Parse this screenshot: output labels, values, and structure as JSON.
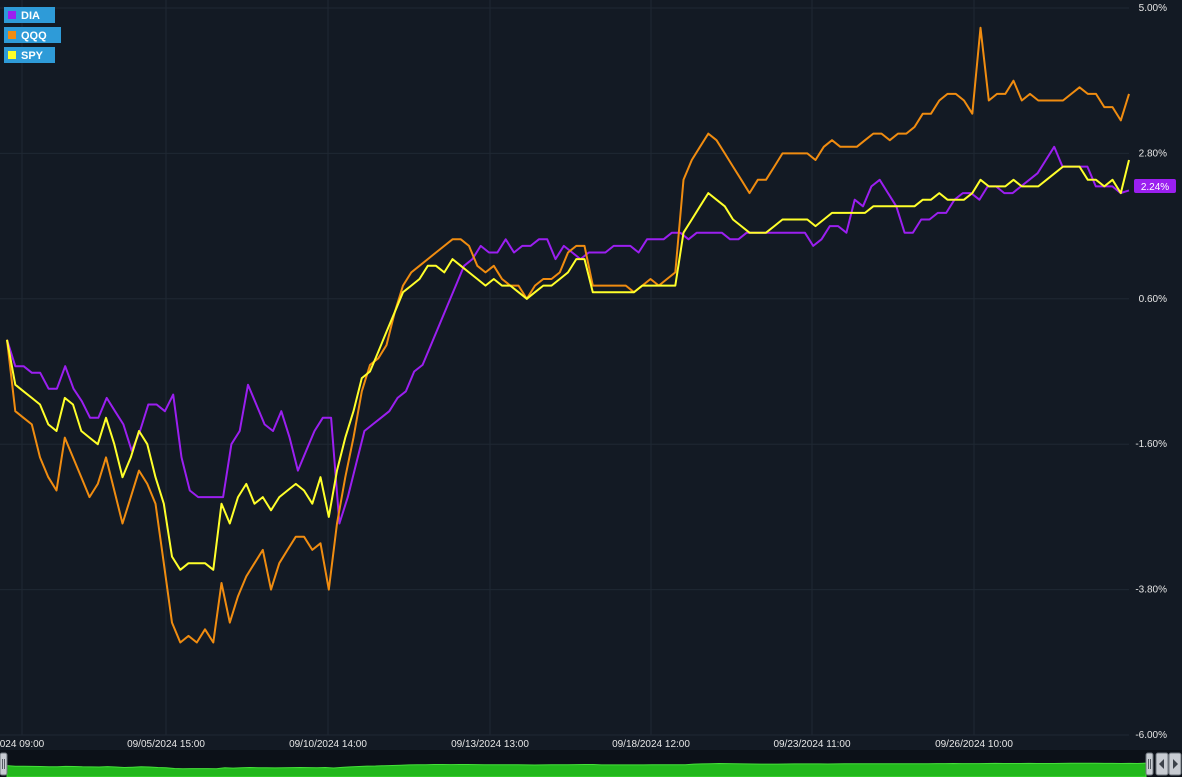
{
  "chart_data": {
    "type": "line",
    "title": "",
    "xlabel": "",
    "ylabel": "",
    "ylim": [
      -6.0,
      5.0
    ],
    "y_ticks": [
      "5.00%",
      "2.80%",
      "0.60%",
      "-1.60%",
      "-3.80%",
      "-6.00%"
    ],
    "x_ticks": [
      "024 09:00",
      "09/05/2024 15:00",
      "09/10/2024 14:00",
      "09/13/2024 13:00",
      "09/18/2024 12:00",
      "09/23/2024 11:00",
      "09/26/2024 10:00"
    ],
    "grid": true,
    "legend_position": "top-left",
    "last_value_label": "2.24%",
    "series": [
      {
        "name": "DIA",
        "color": "#9b1ff0",
        "values": [
          -0.02,
          -0.42,
          -0.42,
          -0.52,
          -0.52,
          -0.76,
          -0.76,
          -0.42,
          -0.76,
          -0.95,
          -1.2,
          -1.2,
          -0.9,
          -1.1,
          -1.3,
          -1.7,
          -1.4,
          -1.0,
          -1.0,
          -1.1,
          -0.85,
          -1.8,
          -2.3,
          -2.4,
          -2.4,
          -2.4,
          -2.4,
          -1.6,
          -1.4,
          -0.7,
          -1.0,
          -1.3,
          -1.4,
          -1.1,
          -1.5,
          -2.0,
          -1.7,
          -1.4,
          -1.2,
          -1.2,
          -2.8,
          -2.4,
          -1.9,
          -1.4,
          -1.3,
          -1.2,
          -1.1,
          -0.9,
          -0.8,
          -0.5,
          -0.4,
          -0.1,
          0.2,
          0.5,
          0.8,
          1.1,
          1.2,
          1.4,
          1.3,
          1.3,
          1.5,
          1.3,
          1.4,
          1.4,
          1.5,
          1.5,
          1.2,
          1.4,
          1.3,
          1.2,
          1.3,
          1.3,
          1.3,
          1.4,
          1.4,
          1.4,
          1.3,
          1.5,
          1.5,
          1.5,
          1.6,
          1.6,
          1.5,
          1.6,
          1.6,
          1.6,
          1.6,
          1.5,
          1.5,
          1.6,
          1.6,
          1.6,
          1.6,
          1.6,
          1.6,
          1.6,
          1.6,
          1.4,
          1.5,
          1.7,
          1.7,
          1.6,
          2.1,
          2.0,
          2.3,
          2.4,
          2.2,
          2.0,
          1.6,
          1.6,
          1.8,
          1.8,
          1.9,
          1.9,
          2.1,
          2.2,
          2.2,
          2.1,
          2.3,
          2.3,
          2.2,
          2.2,
          2.3,
          2.4,
          2.5,
          2.7,
          2.9,
          2.6,
          2.6,
          2.6,
          2.6,
          2.3,
          2.3,
          2.3,
          2.2,
          2.24
        ]
      },
      {
        "name": "QQQ",
        "color": "#f08c10",
        "values": [
          -0.02,
          -1.1,
          -1.2,
          -1.3,
          -1.8,
          -2.1,
          -2.3,
          -1.5,
          -1.8,
          -2.1,
          -2.4,
          -2.2,
          -1.8,
          -2.3,
          -2.8,
          -2.4,
          -2.0,
          -2.2,
          -2.5,
          -3.4,
          -4.3,
          -4.6,
          -4.5,
          -4.6,
          -4.4,
          -4.6,
          -3.7,
          -4.3,
          -3.9,
          -3.6,
          -3.4,
          -3.2,
          -3.8,
          -3.4,
          -3.2,
          -3.0,
          -3.0,
          -3.2,
          -3.1,
          -3.8,
          -2.8,
          -2.1,
          -1.5,
          -0.8,
          -0.4,
          -0.3,
          -0.1,
          0.4,
          0.8,
          1.0,
          1.1,
          1.2,
          1.3,
          1.4,
          1.5,
          1.5,
          1.4,
          1.1,
          1.0,
          1.1,
          0.9,
          0.8,
          0.8,
          0.6,
          0.8,
          0.9,
          0.9,
          1.0,
          1.3,
          1.4,
          1.4,
          0.8,
          0.8,
          0.8,
          0.8,
          0.8,
          0.7,
          0.8,
          0.9,
          0.8,
          0.9,
          1.0,
          2.4,
          2.7,
          2.9,
          3.1,
          3.0,
          2.8,
          2.6,
          2.4,
          2.2,
          2.4,
          2.4,
          2.6,
          2.8,
          2.8,
          2.8,
          2.8,
          2.7,
          2.9,
          3.0,
          2.9,
          2.9,
          2.9,
          3.0,
          3.1,
          3.1,
          3.0,
          3.1,
          3.1,
          3.2,
          3.4,
          3.4,
          3.6,
          3.7,
          3.7,
          3.6,
          3.4,
          4.7,
          3.6,
          3.7,
          3.7,
          3.9,
          3.6,
          3.7,
          3.6,
          3.6,
          3.6,
          3.6,
          3.7,
          3.8,
          3.7,
          3.7,
          3.5,
          3.5,
          3.3,
          3.7
        ]
      },
      {
        "name": "SPY",
        "color": "#ffff2a",
        "values": [
          -0.02,
          -0.7,
          -0.8,
          -0.9,
          -1.0,
          -1.3,
          -1.4,
          -0.9,
          -1.0,
          -1.4,
          -1.5,
          -1.6,
          -1.2,
          -1.6,
          -2.1,
          -1.8,
          -1.4,
          -1.6,
          -2.1,
          -2.5,
          -3.3,
          -3.5,
          -3.4,
          -3.4,
          -3.4,
          -3.5,
          -2.5,
          -2.8,
          -2.4,
          -2.2,
          -2.5,
          -2.4,
          -2.6,
          -2.4,
          -2.3,
          -2.2,
          -2.3,
          -2.5,
          -2.1,
          -2.7,
          -2.0,
          -1.5,
          -1.1,
          -0.6,
          -0.5,
          -0.2,
          0.1,
          0.4,
          0.7,
          0.8,
          0.9,
          1.1,
          1.1,
          1.0,
          1.2,
          1.1,
          1.0,
          0.9,
          0.8,
          0.9,
          0.8,
          0.8,
          0.7,
          0.6,
          0.7,
          0.8,
          0.8,
          0.9,
          1.0,
          1.2,
          1.2,
          0.7,
          0.7,
          0.7,
          0.7,
          0.7,
          0.7,
          0.8,
          0.8,
          0.8,
          0.8,
          0.8,
          1.6,
          1.8,
          2.0,
          2.2,
          2.1,
          2.0,
          1.8,
          1.7,
          1.6,
          1.6,
          1.6,
          1.7,
          1.8,
          1.8,
          1.8,
          1.8,
          1.7,
          1.8,
          1.9,
          1.9,
          1.9,
          1.9,
          1.9,
          2.0,
          2.0,
          2.0,
          2.0,
          2.0,
          2.0,
          2.1,
          2.1,
          2.2,
          2.1,
          2.1,
          2.1,
          2.2,
          2.4,
          2.3,
          2.3,
          2.3,
          2.4,
          2.3,
          2.3,
          2.3,
          2.4,
          2.5,
          2.6,
          2.6,
          2.6,
          2.4,
          2.4,
          2.3,
          2.4,
          2.2,
          2.7
        ]
      }
    ]
  },
  "navigator": {
    "fill_color": "#22b81c",
    "left_handle_icon": "grip-handle-icon",
    "right_handle_icon": "grip-handle-icon",
    "scroll_left_icon": "arrow-left-icon",
    "scroll_right_icon": "arrow-right-icon"
  },
  "colors": {
    "background": "#131a24",
    "grid": "#1f2833",
    "legend_box": "#2e9bd8"
  }
}
